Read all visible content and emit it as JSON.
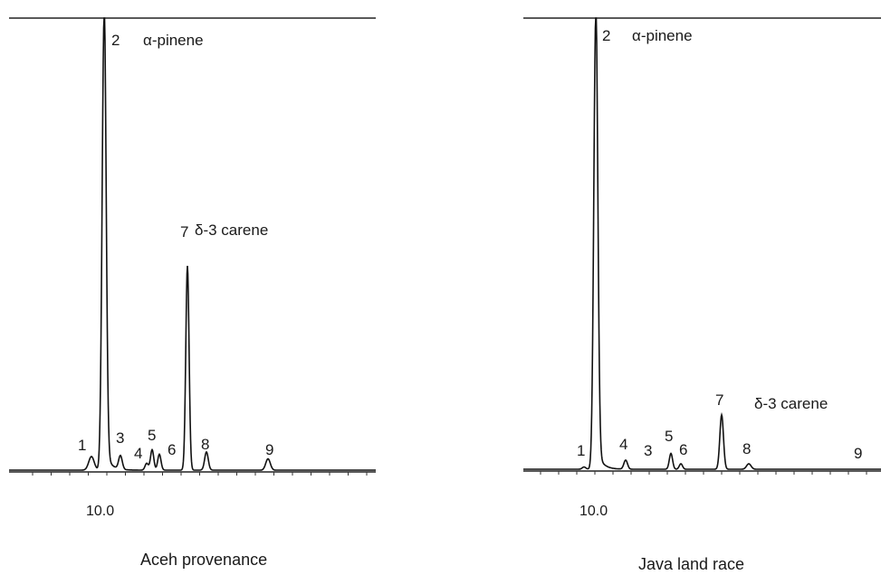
{
  "chart_data": [
    {
      "type": "line",
      "title": "Aceh provenance",
      "xtick_label": "10.0",
      "baseline_color": "#222222",
      "peaks": [
        {
          "label": "1",
          "compound": "",
          "rel_height": 0.03
        },
        {
          "label": "2",
          "compound": "α-pinene",
          "rel_height": 1.0
        },
        {
          "label": "3",
          "compound": "",
          "rel_height": 0.03
        },
        {
          "label": "4",
          "compound": "",
          "rel_height": 0.015
        },
        {
          "label": "5",
          "compound": "",
          "rel_height": 0.045
        },
        {
          "label": "6",
          "compound": "",
          "rel_height": 0.035
        },
        {
          "label": "7",
          "compound": "δ-3 carene",
          "rel_height": 0.45
        },
        {
          "label": "8",
          "compound": "",
          "rel_height": 0.04
        },
        {
          "label": "9",
          "compound": "",
          "rel_height": 0.025
        }
      ]
    },
    {
      "type": "line",
      "title": "Java land race",
      "xtick_label": "10.0",
      "baseline_color": "#222222",
      "peaks": [
        {
          "label": "1",
          "compound": "",
          "rel_height": 0.005
        },
        {
          "label": "2",
          "compound": "α-pinene",
          "rel_height": 1.0
        },
        {
          "label": "4",
          "compound": "",
          "rel_height": 0.02
        },
        {
          "label": "3",
          "compound": "",
          "rel_height": 0.0
        },
        {
          "label": "5",
          "compound": "",
          "rel_height": 0.035
        },
        {
          "label": "6",
          "compound": "",
          "rel_height": 0.012
        },
        {
          "label": "7",
          "compound": "δ-3 carene",
          "rel_height": 0.12
        },
        {
          "label": "8",
          "compound": "",
          "rel_height": 0.012
        },
        {
          "label": "9",
          "compound": "",
          "rel_height": 0.0
        }
      ]
    }
  ]
}
